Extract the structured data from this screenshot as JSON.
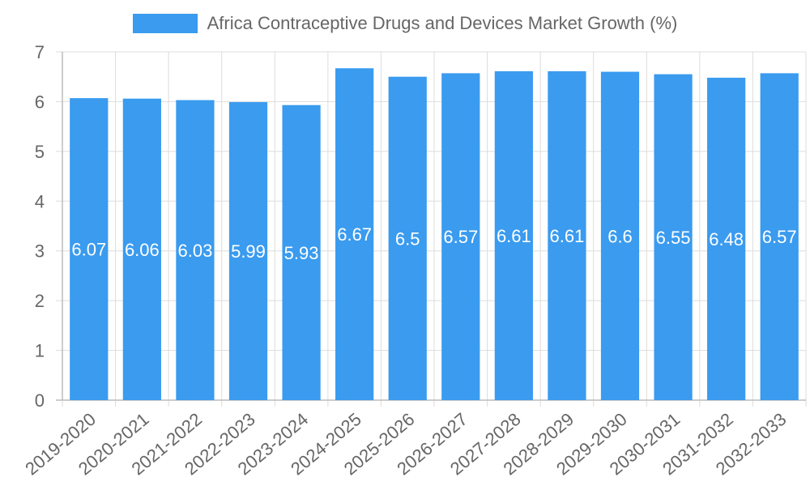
{
  "chart_data": {
    "type": "bar",
    "title": "",
    "xlabel": "",
    "ylabel": "",
    "legend": "Africa Contraceptive Drugs and Devices Market Growth (%)",
    "legend_position": "top",
    "categories": [
      "2019-2020",
      "2020-2021",
      "2021-2022",
      "2022-2023",
      "2023-2024",
      "2024-2025",
      "2025-2026",
      "2026-2027",
      "2027-2028",
      "2028-2029",
      "2029-2030",
      "2030-2031",
      "2031-2032",
      "2032-2033"
    ],
    "values": [
      6.07,
      6.06,
      6.03,
      5.99,
      5.93,
      6.67,
      6.5,
      6.57,
      6.61,
      6.61,
      6.6,
      6.55,
      6.48,
      6.57
    ],
    "data_labels": [
      "6.07",
      "6.06",
      "6.03",
      "5.99",
      "5.93",
      "6.67",
      "6.5",
      "6.57",
      "6.61",
      "6.61",
      "6.6",
      "6.55",
      "6.48",
      "6.57"
    ],
    "ylim": [
      0,
      7
    ],
    "yticks": [
      0,
      1,
      2,
      3,
      4,
      5,
      6,
      7
    ],
    "grid": true,
    "colors": {
      "bar": "#3a9bef",
      "grid": "#dddddd",
      "axis_text": "#666666",
      "label_text": "#ffffff"
    }
  }
}
